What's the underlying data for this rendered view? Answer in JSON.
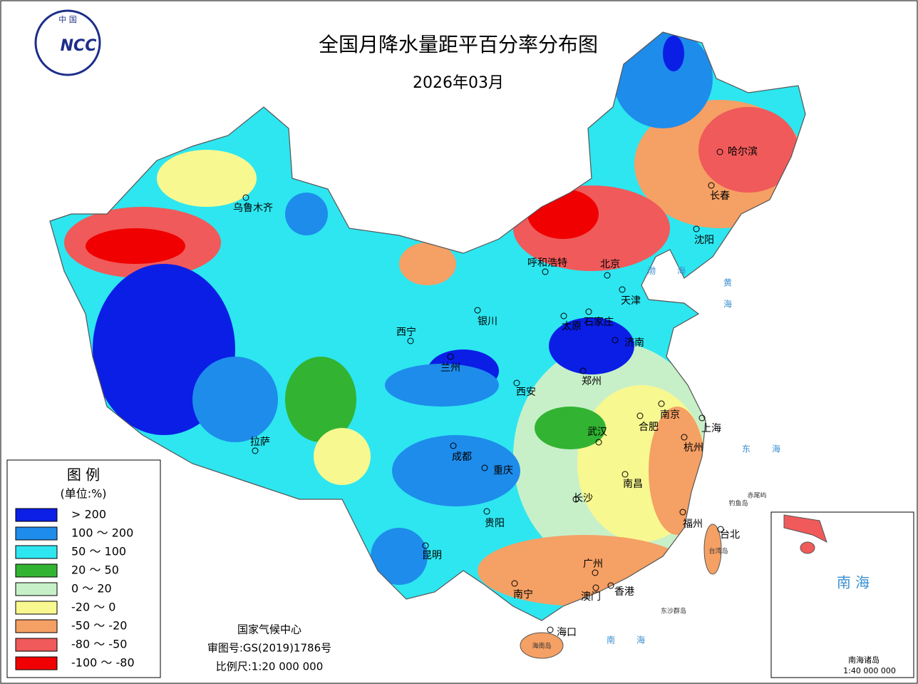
{
  "header": {
    "logo_top": "中 国",
    "logo": "NCC",
    "title": "全国月降水量距平百分率分布图",
    "subtitle": "2026年03月"
  },
  "legend": {
    "title": "图 例",
    "unit": "(单位:%)",
    "items": [
      {
        "label": "> 200",
        "color": "#0a1ee6"
      },
      {
        "label": "100 ～ 200",
        "color": "#1e8ceb"
      },
      {
        "label": "50 ～ 100",
        "color": "#2de6f0"
      },
      {
        "label": "20 ～ 50",
        "color": "#32b432"
      },
      {
        "label": "0 ～ 20",
        "color": "#c8f0c8"
      },
      {
        "label": "-20 ～ 0",
        "color": "#f8f890"
      },
      {
        "label": "-50 ～ -20",
        "color": "#f5a064"
      },
      {
        "label": "-80 ～ -50",
        "color": "#f05a5a"
      },
      {
        "label": "-100 ～ -80",
        "color": "#f00000"
      }
    ]
  },
  "cities": [
    "乌鲁木齐",
    "拉萨",
    "西宁",
    "兰州",
    "银川",
    "呼和浩特",
    "北京",
    "天津",
    "石家庄",
    "太原",
    "济南",
    "郑州",
    "西安",
    "南京",
    "合肥",
    "上海",
    "杭州",
    "武汉",
    "成都",
    "重庆",
    "长沙",
    "南昌",
    "贵阳",
    "福州",
    "台北",
    "昆明",
    "南宁",
    "广州",
    "澳门",
    "香港",
    "海口",
    "长春",
    "沈阳",
    "哈尔滨"
  ],
  "seas": [
    "渤海",
    "黄海",
    "东海",
    "南海"
  ],
  "islands": [
    "钓鱼岛",
    "赤尾屿",
    "台湾岛",
    "海南岛",
    "东沙群岛"
  ],
  "footer": [
    "国家气候中心",
    "审图号:GS(2019)1786号",
    "比例尺:1:20 000 000"
  ],
  "inset": {
    "title": "南 海",
    "islands": "南海诸岛",
    "scale": "1:40 000 000"
  }
}
